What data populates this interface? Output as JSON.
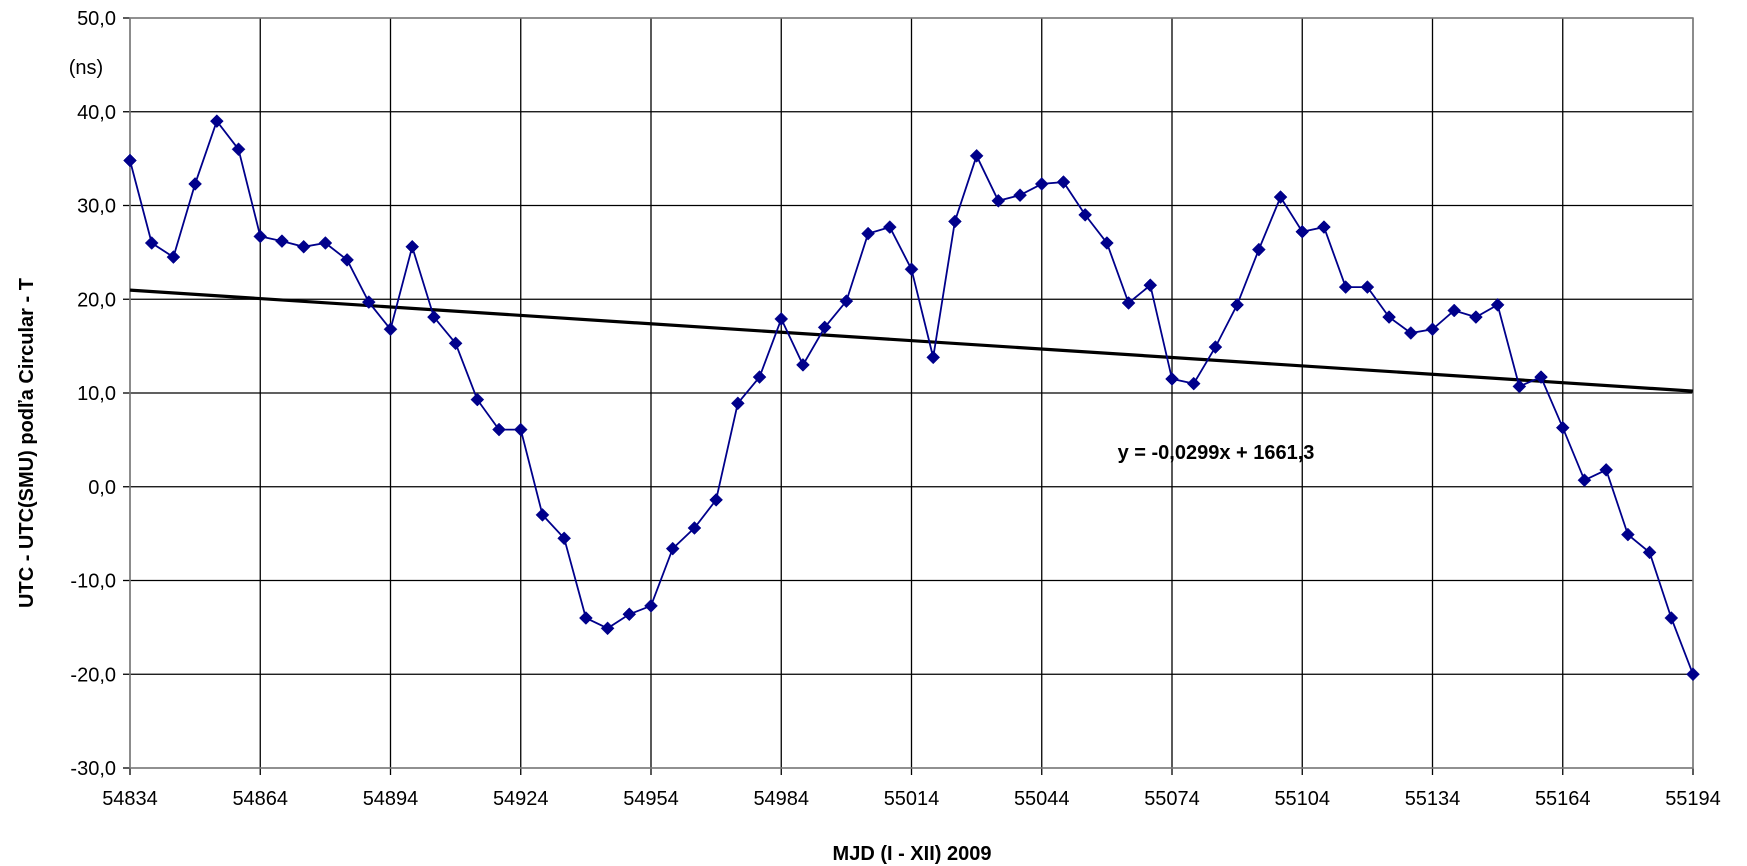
{
  "chart_data": {
    "type": "line",
    "title": "",
    "xlabel": "MJD (I - XII) 2009",
    "ylabel": "UTC - UTC(SMU) podľa Circular - T",
    "y_unit": "(ns)",
    "xlim": [
      54834,
      55194
    ],
    "ylim": [
      -30,
      50
    ],
    "x_ticks": [
      54834,
      54864,
      54894,
      54924,
      54954,
      54984,
      55014,
      55044,
      55074,
      55104,
      55134,
      55164,
      55194
    ],
    "x_tick_labels": [
      "54834",
      "54864",
      "54894",
      "54924",
      "54954",
      "54984",
      "55014",
      "55044",
      "55074",
      "55104",
      "55134",
      "55164",
      "55194"
    ],
    "y_ticks": [
      -30,
      -20,
      -10,
      0,
      10,
      20,
      30,
      40,
      50
    ],
    "y_tick_labels": [
      "-30,0",
      "-20,0",
      "-10,0",
      "0,0",
      "10,0",
      "20,0",
      "30,0",
      "40,0",
      "50,0"
    ],
    "grid": true,
    "legend": "none",
    "series": [
      {
        "color": "#00008B",
        "marker": "diamond",
        "x": [
          54834,
          54839,
          54844,
          54849,
          54854,
          54859,
          54864,
          54869,
          54874,
          54879,
          54884,
          54889,
          54894,
          54899,
          54904,
          54909,
          54914,
          54919,
          54924,
          54929,
          54934,
          54939,
          54944,
          54949,
          54954,
          54959,
          54964,
          54969,
          54974,
          54979,
          54984,
          54989,
          54994,
          54999,
          55004,
          55009,
          55014,
          55019,
          55024,
          55029,
          55034,
          55039,
          55044,
          55049,
          55054,
          55059,
          55064,
          55069,
          55074,
          55079,
          55084,
          55089,
          55094,
          55099,
          55104,
          55109,
          55114,
          55119,
          55124,
          55129,
          55134,
          55139,
          55144,
          55149,
          55154,
          55159,
          55164,
          55169,
          55174,
          55179,
          55184,
          55189,
          55194
        ],
        "values": [
          34.8,
          26.0,
          24.5,
          32.3,
          39.0,
          36.0,
          26.7,
          26.2,
          25.6,
          26.0,
          24.2,
          19.7,
          16.8,
          25.6,
          18.1,
          15.3,
          9.3,
          6.1,
          6.1,
          -3.0,
          -5.5,
          -14.0,
          -15.1,
          -13.6,
          -12.7,
          -6.6,
          -4.4,
          -1.4,
          8.9,
          11.7,
          17.9,
          13.0,
          17.0,
          19.8,
          27.0,
          27.7,
          23.2,
          13.8,
          28.3,
          35.3,
          30.5,
          31.1,
          32.3,
          32.5,
          29.0,
          26.0,
          19.6,
          21.5,
          11.5,
          11.0,
          14.9,
          19.4,
          25.3,
          30.9,
          27.2,
          27.7,
          21.3,
          21.3,
          18.1,
          16.4,
          16.8,
          18.8,
          18.1,
          19.4,
          10.7,
          11.7,
          6.3,
          0.7,
          1.8,
          -5.1,
          -7.0,
          -14.0,
          -20.0
        ]
      }
    ],
    "trendline": {
      "color": "#000000",
      "x": [
        54834,
        55194
      ],
      "values": [
        20.97,
        10.2
      ],
      "equation": "y = -0,0299x + 1661,3"
    }
  }
}
